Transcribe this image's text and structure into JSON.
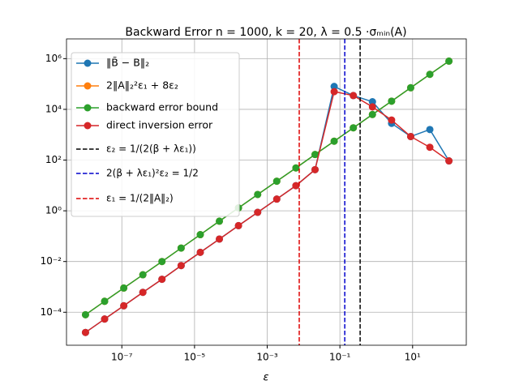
{
  "chart_data": {
    "type": "line",
    "title": "Backward Error n = 1000, k = 20, λ = 0.5 ·σₘᵢₙ(A)",
    "x_label": "ε",
    "log_x": true,
    "log_y": true,
    "grid": true,
    "legend": "upper left",
    "x": [
      1e-08,
      3.36e-08,
      1.13e-07,
      3.79e-07,
      1.27e-06,
      4.28e-06,
      1.44e-05,
      4.83e-05,
      0.000162,
      0.000546,
      0.00183,
      0.00616,
      0.0207,
      0.0695,
      0.234,
      0.785,
      2.64,
      8.86,
      29.8,
      100
    ],
    "series": [
      {
        "name": "‖B̃ − B‖₂",
        "color": "#1f77b4",
        "values": [
          1.6e-05,
          5.4e-05,
          0.00018,
          0.00061,
          0.002,
          0.0069,
          0.023,
          0.077,
          0.26,
          0.87,
          2.9,
          9.8,
          42,
          80000,
          35000,
          20000,
          2800,
          850,
          1600,
          93
        ]
      },
      {
        "name": "2‖A‖₂²ε₁ + 8ε₂",
        "color": "#ff7f0e",
        "values": [
          8e-05,
          0.00027,
          0.0009,
          0.003,
          0.01,
          0.034,
          0.115,
          0.39,
          1.3,
          4.4,
          14.7,
          49,
          166,
          556,
          1870,
          6280,
          21000,
          71000,
          240000,
          800000
        ]
      },
      {
        "name": "backward error  bound",
        "color": "#2ca02c",
        "values": [
          8e-05,
          0.00027,
          0.0009,
          0.003,
          0.01,
          0.034,
          0.115,
          0.39,
          1.3,
          4.4,
          14.7,
          49,
          166,
          556,
          1870,
          6280,
          21000,
          71000,
          240000,
          800000
        ]
      },
      {
        "name": "direct inversion error",
        "color": "#d62728",
        "values": [
          1.6e-05,
          5.4e-05,
          0.00018,
          0.00061,
          0.002,
          0.0069,
          0.023,
          0.077,
          0.26,
          0.87,
          2.9,
          9.8,
          42,
          50000,
          35000,
          12500,
          3800,
          850,
          320,
          93
        ]
      }
    ],
    "vlines": [
      {
        "name": "ε₂ = 1/(2(β + λε₁))",
        "color": "#000000",
        "x": 0.36
      },
      {
        "name": "2(β + λε₁)²ε₂ = 1/2",
        "color": "#0000cc",
        "x": 0.136
      },
      {
        "name": "ε₁ = 1/(2‖A‖₂)",
        "color": "#dd0000",
        "x": 0.0076
      }
    ],
    "xlim": [
      3e-09,
      300
    ],
    "ylim": [
      5e-06,
      6000000.0
    ],
    "xticks": [
      {
        "value": 1e-07,
        "label": "10⁻⁷"
      },
      {
        "value": 1e-05,
        "label": "10⁻⁵"
      },
      {
        "value": 0.001,
        "label": "10⁻³"
      },
      {
        "value": 0.1,
        "label": "10⁻¹"
      },
      {
        "value": 10,
        "label": "10¹"
      }
    ],
    "yticks": [
      {
        "value": 0.0001,
        "label": "10⁻⁴"
      },
      {
        "value": 0.01,
        "label": "10⁻²"
      },
      {
        "value": 1,
        "label": "10⁰"
      },
      {
        "value": 100,
        "label": "10²"
      },
      {
        "value": 10000,
        "label": "10⁴"
      },
      {
        "value": 1000000,
        "label": "10⁶"
      }
    ]
  }
}
